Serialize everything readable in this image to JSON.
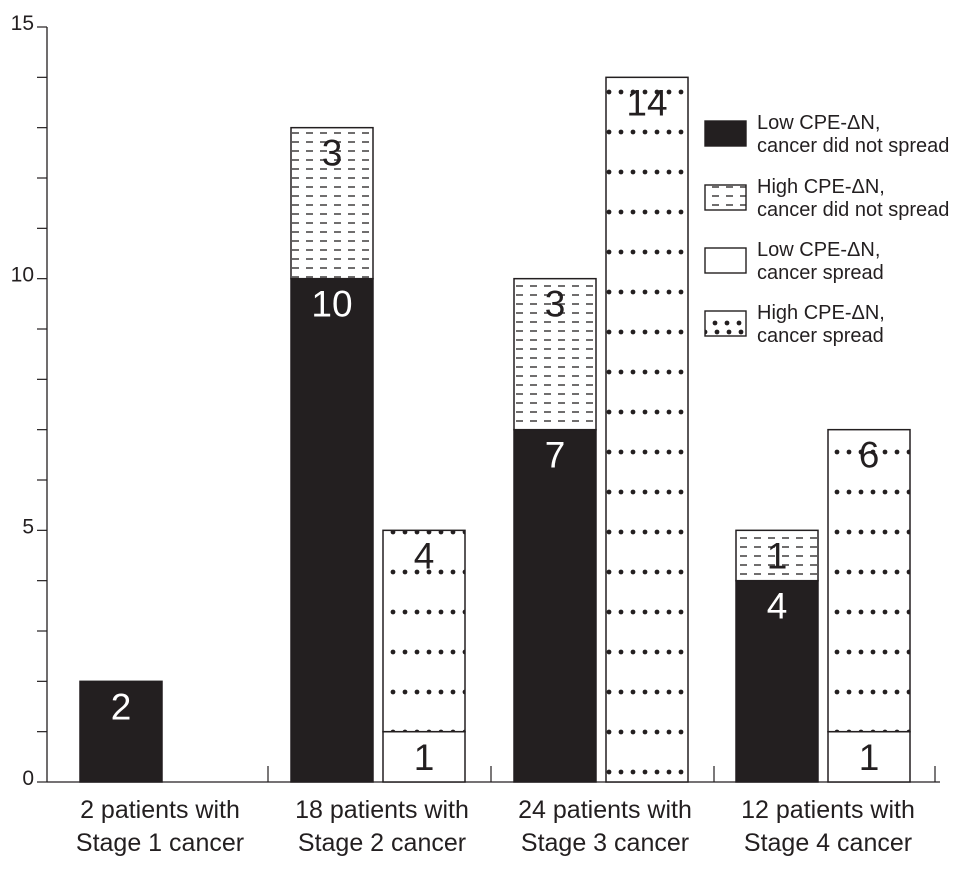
{
  "chart_data": {
    "type": "bar",
    "stacked": true,
    "ylim": [
      0,
      15
    ],
    "yticks": [
      "0",
      "5",
      "10",
      "15"
    ],
    "minor_tick_step": 1,
    "grid": false,
    "legend_position": "right",
    "categories": [
      {
        "label_lines": [
          "2 patients with",
          "Stage 1 cancer"
        ]
      },
      {
        "label_lines": [
          "18 patients with",
          "Stage 2 cancer"
        ]
      },
      {
        "label_lines": [
          "24 patients with",
          "Stage 3 cancer"
        ]
      },
      {
        "label_lines": [
          "12 patients with",
          "Stage 4 cancer"
        ]
      }
    ],
    "series": [
      {
        "key": "low_no_spread",
        "name_lines": [
          "Low CPE-ΔN,",
          "cancer did not spread"
        ],
        "pattern": "solid",
        "color": "#231f20"
      },
      {
        "key": "high_no_spread",
        "name_lines": [
          "High CPE-ΔN,",
          "cancer did not spread"
        ],
        "pattern": "dashed",
        "color": "#231f20"
      },
      {
        "key": "low_spread",
        "name_lines": [
          "Low CPE-ΔN,",
          "cancer spread"
        ],
        "pattern": "empty",
        "color": "#ffffff"
      },
      {
        "key": "high_spread",
        "name_lines": [
          "High CPE-ΔN,",
          "cancer spread"
        ],
        "pattern": "dotted",
        "color": "#231f20"
      }
    ],
    "bars": [
      {
        "category": 0,
        "slot": 0,
        "segments": [
          {
            "series": "low_no_spread",
            "value": 2,
            "label": "2"
          }
        ]
      },
      {
        "category": 1,
        "slot": 0,
        "segments": [
          {
            "series": "low_no_spread",
            "value": 10,
            "label": "10"
          },
          {
            "series": "high_no_spread",
            "value": 3,
            "label": "3"
          }
        ]
      },
      {
        "category": 1,
        "slot": 1,
        "segments": [
          {
            "series": "low_spread",
            "value": 1,
            "label": "1"
          },
          {
            "series": "high_spread",
            "value": 4,
            "label": "4"
          }
        ]
      },
      {
        "category": 2,
        "slot": 0,
        "segments": [
          {
            "series": "low_no_spread",
            "value": 7,
            "label": "7"
          },
          {
            "series": "high_no_spread",
            "value": 3,
            "label": "3"
          }
        ]
      },
      {
        "category": 2,
        "slot": 1,
        "segments": [
          {
            "series": "high_spread",
            "value": 14,
            "label": "14"
          }
        ]
      },
      {
        "category": 3,
        "slot": 0,
        "segments": [
          {
            "series": "low_no_spread",
            "value": 4,
            "label": "4"
          },
          {
            "series": "high_no_spread",
            "value": 1,
            "label": "1"
          }
        ]
      },
      {
        "category": 3,
        "slot": 1,
        "segments": [
          {
            "series": "low_spread",
            "value": 1,
            "label": "1"
          },
          {
            "series": "high_spread",
            "value": 6,
            "label": "6"
          }
        ]
      }
    ]
  }
}
